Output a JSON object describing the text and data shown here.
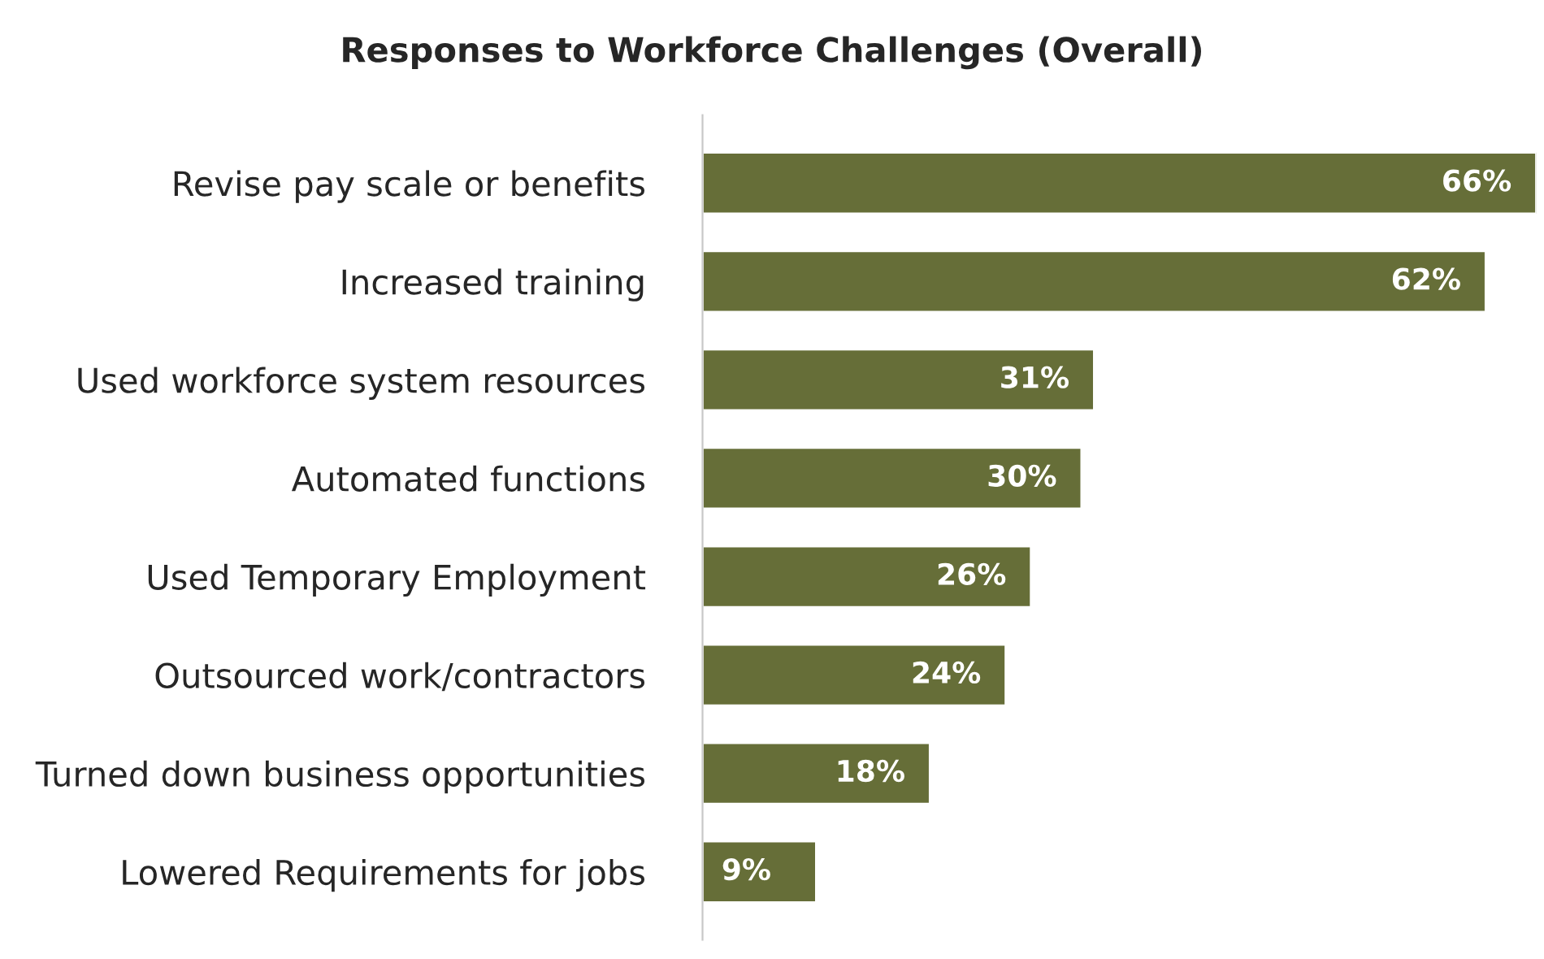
{
  "chart_data": {
    "type": "bar",
    "orientation": "horizontal",
    "title": "Responses to Workforce Challenges (Overall)",
    "categories": [
      "Revise pay scale or benefits",
      "Increased training",
      "Used workforce system resources",
      "Automated functions",
      "Used Temporary Employment",
      "Outsourced work/contractors",
      "Turned down business opportunities",
      "Lowered Requirements for jobs"
    ],
    "values": [
      66,
      62,
      31,
      30,
      26,
      24,
      18,
      9
    ],
    "value_labels": [
      "66%",
      "62%",
      "31%",
      "30%",
      "26%",
      "24%",
      "18%",
      "9%"
    ],
    "color": "#666e38",
    "grid": false,
    "legend": false
  }
}
